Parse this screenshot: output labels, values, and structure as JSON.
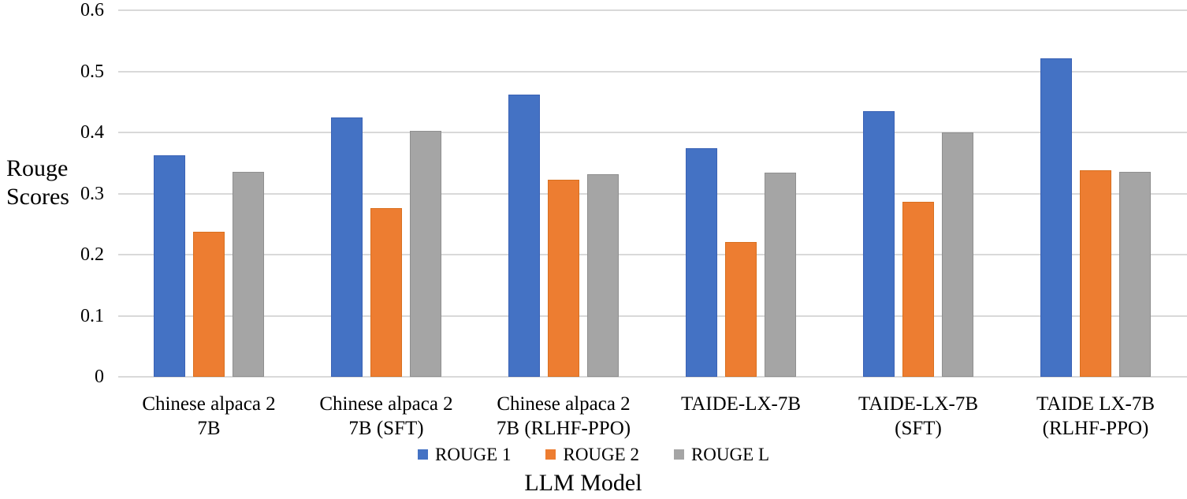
{
  "chart_data": {
    "type": "bar",
    "title": "",
    "xlabel": "LLM Model",
    "ylabel": "Rouge\nScores",
    "ylim": [
      0,
      0.6
    ],
    "yticks": [
      0,
      0.1,
      0.2,
      0.3,
      0.4,
      0.5,
      0.6
    ],
    "grid": true,
    "gridline_color": "#d9d9d9",
    "legend_position": "bottom",
    "categories": [
      "Chinese alpaca 2\n7B",
      "Chinese alpaca 2\n7B (SFT)",
      "Chinese alpaca 2\n7B (RLHF-PPO)",
      "TAIDE-LX-7B",
      "TAIDE-LX-7B\n(SFT)",
      "TAIDE LX-7B\n(RLHF-PPO)"
    ],
    "series": [
      {
        "name": "ROUGE 1",
        "color": "#4472C4",
        "edge_color": "#3A62B5",
        "values": [
          0.362,
          0.424,
          0.462,
          0.374,
          0.435,
          0.521
        ]
      },
      {
        "name": "ROUGE 2",
        "color": "#ED7D31",
        "edge_color": "#D9701F",
        "values": [
          0.237,
          0.276,
          0.323,
          0.221,
          0.286,
          0.338
        ]
      },
      {
        "name": "ROUGE L",
        "color": "#A5A5A5",
        "edge_color": "#8F8F8F",
        "values": [
          0.335,
          0.402,
          0.332,
          0.334,
          0.4,
          0.335
        ]
      }
    ]
  }
}
